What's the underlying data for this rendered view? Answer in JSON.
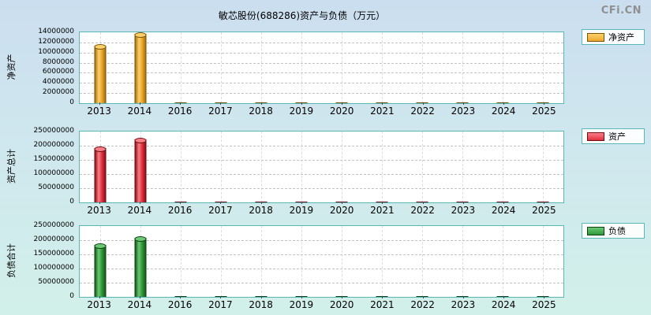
{
  "page": {
    "title": "敏芯股份(688286)资产与负债（万元）",
    "logo": "CFi.CN"
  },
  "chart_data": [
    {
      "type": "bar",
      "title": "净资产",
      "ylabel": "净资产",
      "legend": "净资产",
      "legend_position": "right",
      "grid": true,
      "ylim": [
        0,
        14000000
      ],
      "ymax": 14000000,
      "yticks": [
        0,
        2000000,
        4000000,
        6000000,
        8000000,
        10000000,
        12000000,
        14000000
      ],
      "categories": [
        "2013",
        "2014",
        "2016",
        "2017",
        "2018",
        "2019",
        "2020",
        "2021",
        "2022",
        "2023",
        "2024",
        "2025"
      ],
      "values": [
        11400000,
        13700000,
        150000,
        150000,
        150000,
        150000,
        150000,
        150000,
        150000,
        150000,
        150000,
        150000
      ],
      "colors": {
        "main": "#EFA92F",
        "light": "#FBD06C",
        "dark": "#A9720E",
        "border": "#7A5200"
      }
    },
    {
      "type": "bar",
      "title": "资产总计",
      "ylabel": "资产总计",
      "legend": "资产",
      "legend_position": "right",
      "grid": true,
      "ylim": [
        0,
        250000000
      ],
      "ymax": 250000000,
      "yticks": [
        0,
        50000000,
        100000000,
        150000000,
        200000000,
        250000000
      ],
      "categories": [
        "2013",
        "2014",
        "2016",
        "2017",
        "2018",
        "2019",
        "2020",
        "2021",
        "2022",
        "2023",
        "2024",
        "2025"
      ],
      "values": [
        193000000,
        222000000,
        2500000,
        2500000,
        2500000,
        2500000,
        2500000,
        2500000,
        2500000,
        2500000,
        2500000,
        2500000
      ],
      "colors": {
        "main": "#E03340",
        "light": "#F97E86",
        "dark": "#8F1119",
        "border": "#6E0A11"
      }
    },
    {
      "type": "bar",
      "title": "负债合计",
      "ylabel": "负债合计",
      "legend": "负债",
      "legend_position": "right",
      "grid": true,
      "ylim": [
        0,
        250000000
      ],
      "ymax": 250000000,
      "yticks": [
        0,
        50000000,
        100000000,
        150000000,
        200000000,
        250000000
      ],
      "categories": [
        "2013",
        "2014",
        "2016",
        "2017",
        "2018",
        "2019",
        "2020",
        "2021",
        "2022",
        "2023",
        "2024",
        "2025"
      ],
      "values": [
        182000000,
        209000000,
        2000000,
        2000000,
        2000000,
        2000000,
        2000000,
        2000000,
        2000000,
        2000000,
        2000000,
        2000000
      ],
      "colors": {
        "main": "#2F9939",
        "light": "#6CC873",
        "dark": "#155C1B",
        "border": "#0C4012"
      }
    }
  ]
}
